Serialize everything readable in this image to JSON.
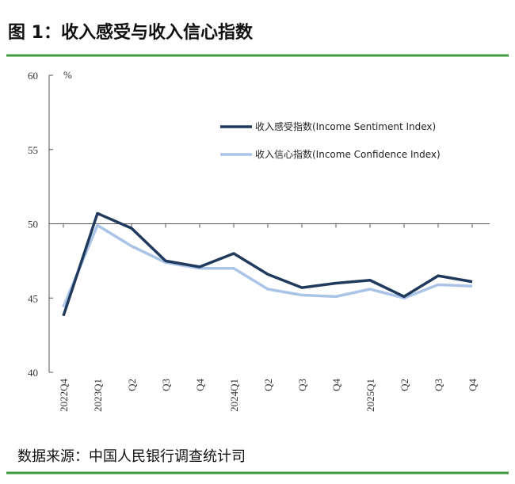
{
  "title": "图 1：收入感受与收入信心指数",
  "source": "数据来源：中国人民银行调查统计司",
  "chart_data": {
    "type": "line",
    "unit": "%",
    "categories": [
      "2022Q4",
      "2023Q1",
      "Q2",
      "Q3",
      "Q4",
      "2024Q1",
      "Q2",
      "Q3",
      "Q4",
      "2025Q1",
      "Q2",
      "Q3",
      "Q4"
    ],
    "series": [
      {
        "name": "收入感受指数(Income Sentiment Index)",
        "color": "#1f3a5c",
        "values": [
          43.8,
          50.7,
          49.7,
          47.5,
          47.1,
          48.0,
          46.6,
          45.7,
          46.0,
          46.2,
          45.1,
          46.5,
          46.1
        ]
      },
      {
        "name": "收入信心指数(Income Confidence Index)",
        "color": "#a9c4e6",
        "values": [
          44.4,
          49.9,
          48.5,
          47.4,
          47.0,
          47.0,
          45.6,
          45.2,
          45.1,
          45.6,
          45.0,
          45.9,
          45.8
        ]
      }
    ],
    "ylim": [
      40,
      60
    ],
    "yticks": [
      40,
      45,
      50,
      55,
      60
    ],
    "x_axis_at": 50
  }
}
